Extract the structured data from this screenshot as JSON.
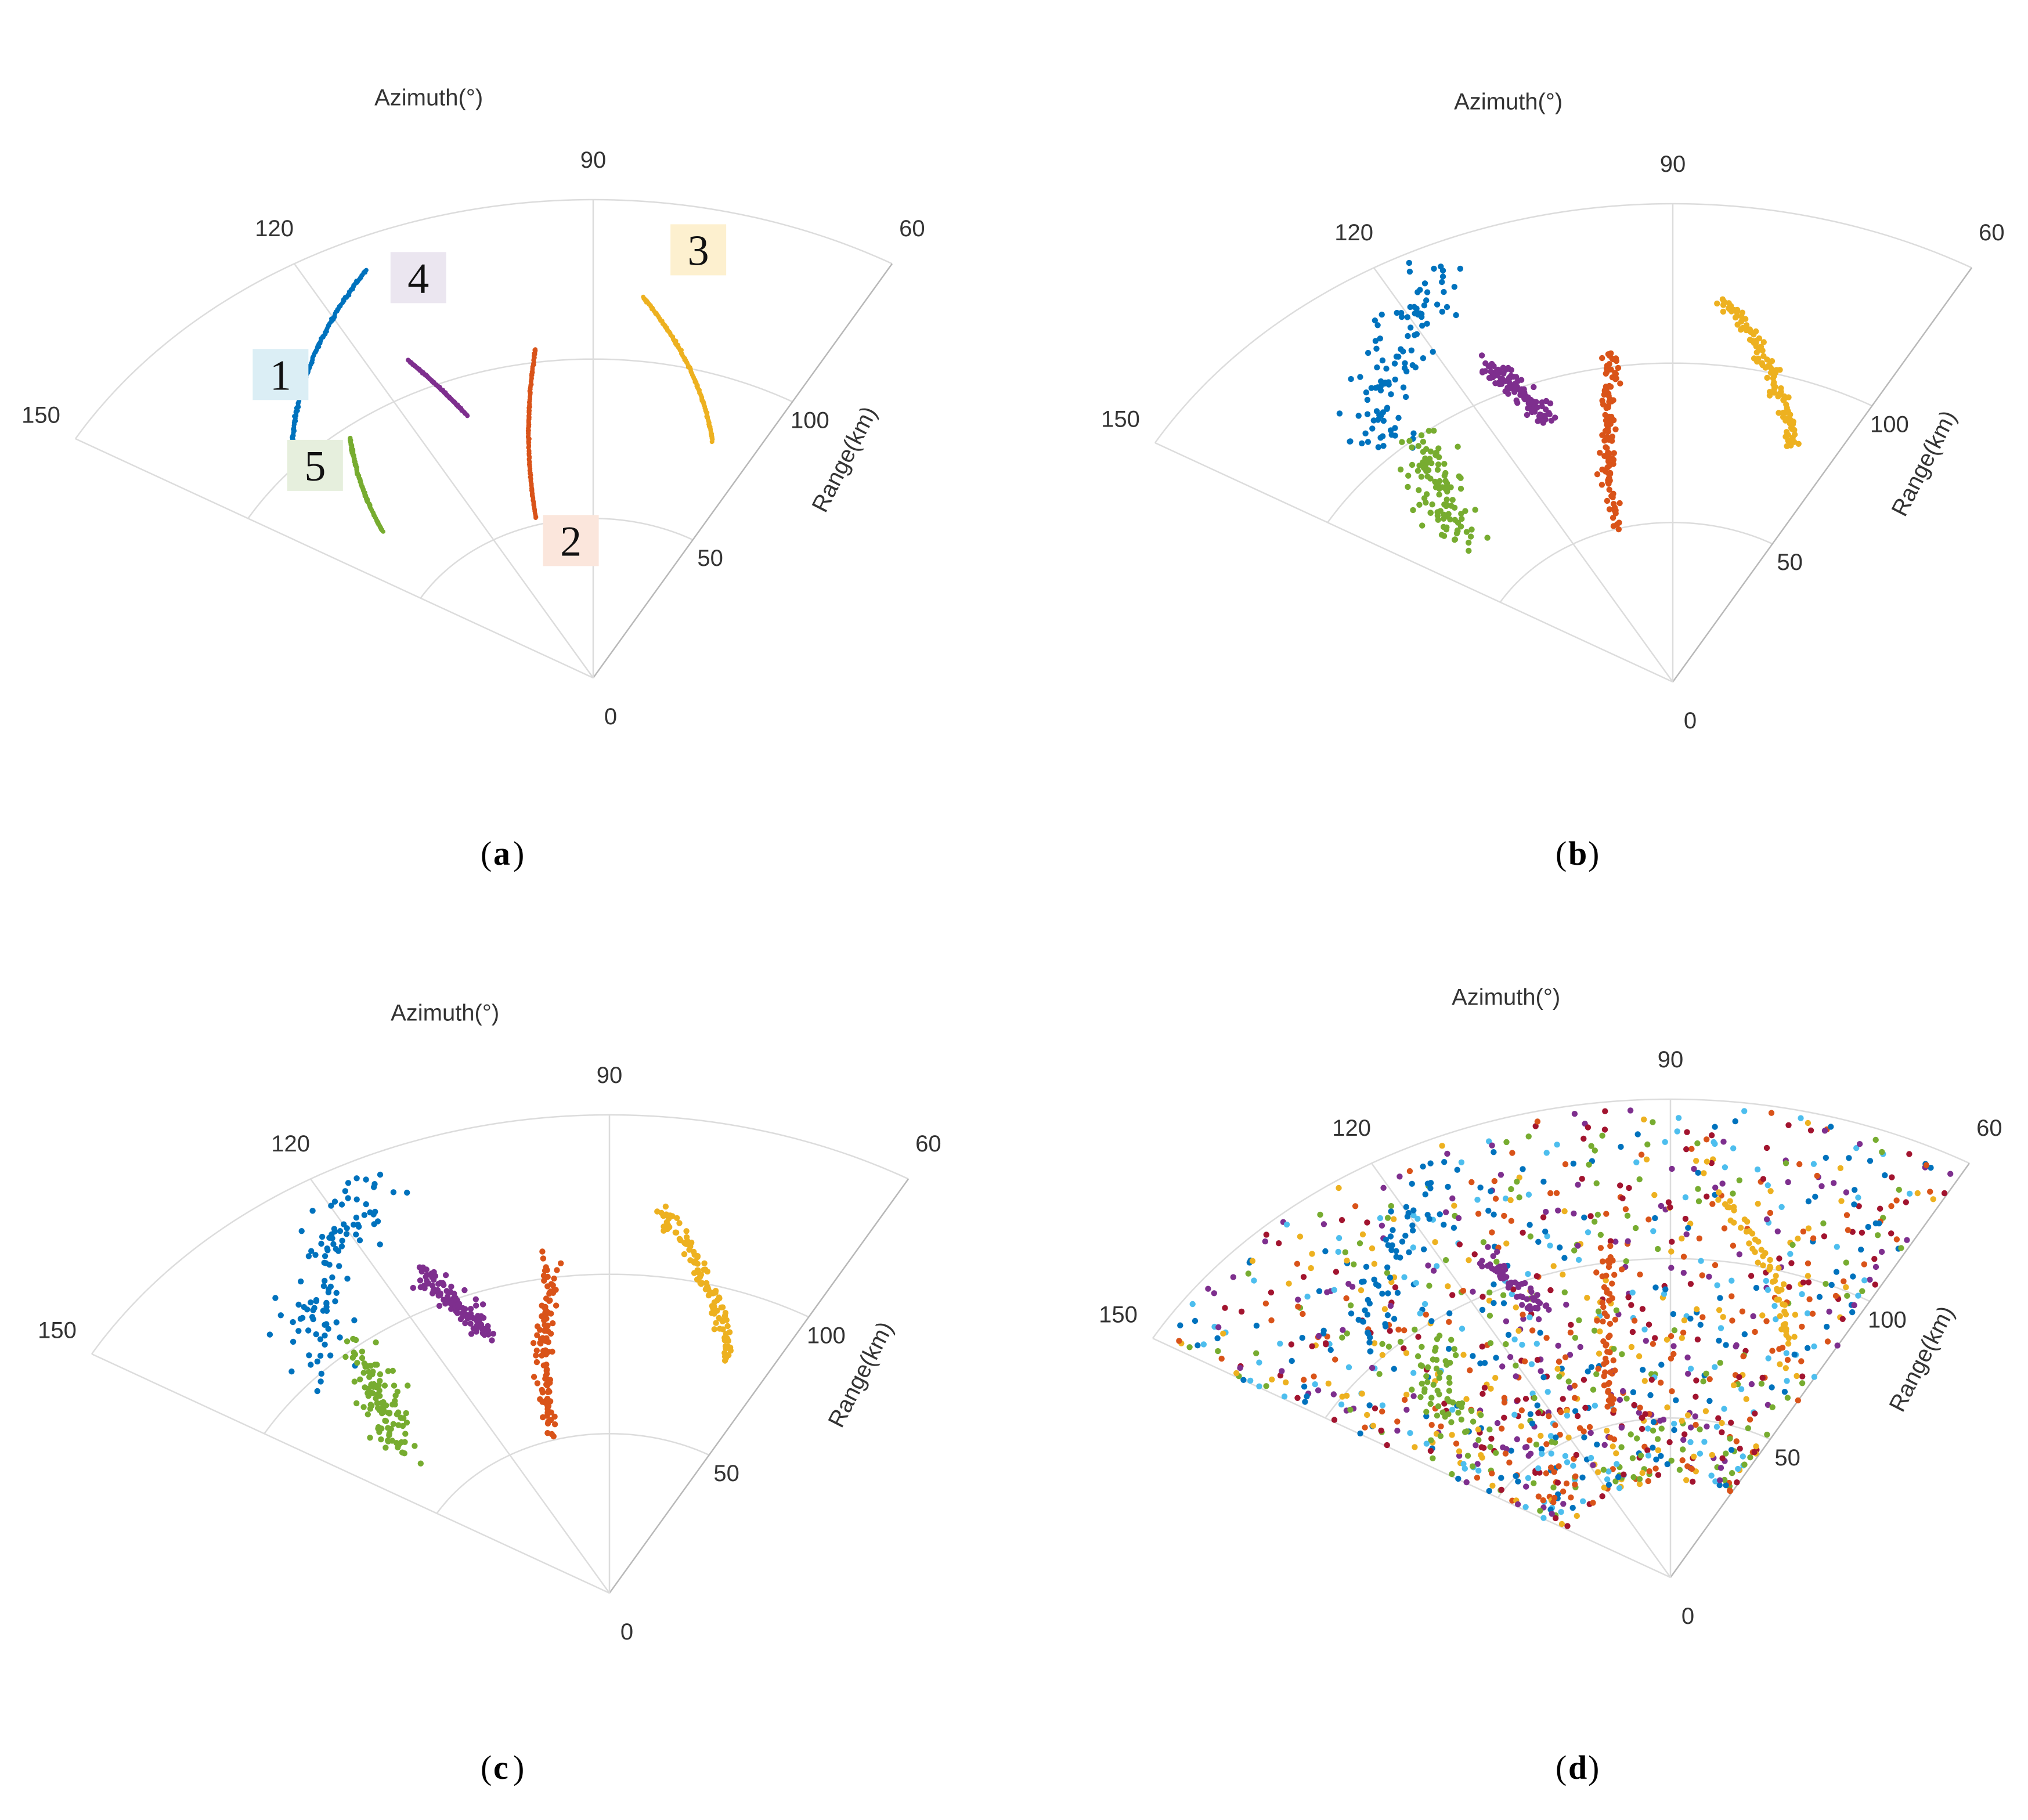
{
  "chart_data": [
    {
      "id": "a",
      "type": "scatter",
      "coordinate_system": "polar-sector",
      "caption_letter": "a",
      "theta_title": "Azimuth(°)",
      "r_title": "Range(km)",
      "theta_range_deg": [
        60,
        150
      ],
      "r_range_km": [
        0,
        150
      ],
      "theta_ticks": [
        "60",
        "90",
        "120",
        "150"
      ],
      "r_ticks": [
        "0",
        "50",
        "100"
      ],
      "points_per_series": 200,
      "noise": "none",
      "series": [
        {
          "name": "1",
          "color": "#0072BD",
          "label_bg": "#dbeef5",
          "track": {
            "r_start": 105,
            "theta_start": 136,
            "r_end": 140,
            "theta_end": 114
          },
          "spread_r": 0.15,
          "spread_theta": 0.04
        },
        {
          "name": "2",
          "color": "#D95319",
          "label_bg": "#fbe6dc",
          "track": {
            "r_start": 52,
            "theta_start": 106,
            "r_end": 104,
            "theta_end": 98
          },
          "spread_r": 0.15,
          "spread_theta": 0.04
        },
        {
          "name": "3",
          "color": "#EDB120",
          "label_bg": "#fdf0cf",
          "track": {
            "r_start": 120,
            "theta_start": 84,
            "r_end": 80,
            "theta_end": 68
          },
          "spread_r": 0.15,
          "spread_theta": 0.04
        },
        {
          "name": "4",
          "color": "#7E2F8E",
          "label_bg": "#ebe6f0",
          "track": {
            "r_start": 110,
            "theta_start": 115,
            "r_end": 88,
            "theta_end": 111
          },
          "spread_r": 0.15,
          "spread_theta": 0.04
        },
        {
          "name": "5",
          "color": "#77AC30",
          "label_bg": "#e6efdd",
          "track": {
            "r_start": 97,
            "theta_start": 129,
            "r_end": 70,
            "theta_end": 139
          },
          "spread_r": 0.15,
          "spread_theta": 0.04
        }
      ]
    },
    {
      "id": "b",
      "type": "scatter",
      "coordinate_system": "polar-sector",
      "caption_letter": "b",
      "theta_title": "Azimuth(°)",
      "r_title": "Range(km)",
      "theta_range_deg": [
        60,
        150
      ],
      "r_range_km": [
        0,
        150
      ],
      "theta_ticks": [
        "60",
        "90",
        "120",
        "150"
      ],
      "r_ticks": [
        "0",
        "50",
        "100"
      ],
      "points_per_series": 110,
      "noise": "none",
      "series": [
        {
          "name": "1",
          "color": "#0072BD",
          "track": {
            "r_start": 104,
            "theta_start": 136,
            "r_end": 141,
            "theta_end": 114
          },
          "spread_r": 4.5,
          "spread_theta": 1.6
        },
        {
          "name": "2",
          "color": "#D95319",
          "track": {
            "r_start": 53,
            "theta_start": 106,
            "r_end": 104,
            "theta_end": 98
          },
          "spread_r": 2.0,
          "spread_theta": 0.7
        },
        {
          "name": "3",
          "color": "#EDB120",
          "track": {
            "r_start": 121,
            "theta_start": 84,
            "r_end": 80,
            "theta_end": 68
          },
          "spread_r": 1.2,
          "spread_theta": 0.5
        },
        {
          "name": "4",
          "color": "#7E2F8E",
          "track": {
            "r_start": 110,
            "theta_start": 115,
            "r_end": 88,
            "theta_end": 111
          },
          "spread_r": 2.0,
          "spread_theta": 0.9
        },
        {
          "name": "5",
          "color": "#77AC30",
          "track": {
            "r_start": 97,
            "theta_start": 129,
            "r_end": 70,
            "theta_end": 139
          },
          "spread_r": 3.5,
          "spread_theta": 1.8
        }
      ]
    },
    {
      "id": "c",
      "type": "scatter",
      "coordinate_system": "polar-sector",
      "caption_letter": "c",
      "theta_title": "Azimuth(°)",
      "r_title": "Range(km)",
      "theta_range_deg": [
        60,
        150
      ],
      "r_range_km": [
        0,
        150
      ],
      "theta_ticks": [
        "60",
        "90",
        "120",
        "150"
      ],
      "r_ticks": [
        "0",
        "50",
        "100"
      ],
      "points_per_series": 110,
      "noise": "none",
      "series": [
        {
          "name": "1",
          "color": "#0072BD",
          "track": {
            "r_start": 104,
            "theta_start": 136,
            "r_end": 141,
            "theta_end": 114
          },
          "spread_r": 4.5,
          "spread_theta": 1.6
        },
        {
          "name": "2",
          "color": "#D95319",
          "track": {
            "r_start": 53,
            "theta_start": 106,
            "r_end": 104,
            "theta_end": 98
          },
          "spread_r": 2.0,
          "spread_theta": 0.7
        },
        {
          "name": "3",
          "color": "#EDB120",
          "track": {
            "r_start": 121,
            "theta_start": 84,
            "r_end": 80,
            "theta_end": 68
          },
          "spread_r": 1.2,
          "spread_theta": 0.5
        },
        {
          "name": "4",
          "color": "#7E2F8E",
          "track": {
            "r_start": 110,
            "theta_start": 115,
            "r_end": 88,
            "theta_end": 111
          },
          "spread_r": 2.0,
          "spread_theta": 0.9
        },
        {
          "name": "5",
          "color": "#77AC30",
          "track": {
            "r_start": 97,
            "theta_start": 129,
            "r_end": 70,
            "theta_end": 139
          },
          "spread_r": 3.5,
          "spread_theta": 1.8
        }
      ]
    },
    {
      "id": "d",
      "type": "scatter",
      "coordinate_system": "polar-sector",
      "caption_letter": "d",
      "theta_title": "Azimuth(°)",
      "r_title": "Range(km)",
      "theta_range_deg": [
        60,
        150
      ],
      "r_range_km": [
        0,
        150
      ],
      "theta_ticks": [
        "60",
        "90",
        "120",
        "150"
      ],
      "r_ticks": [
        "0",
        "50",
        "100"
      ],
      "points_per_series": 55,
      "noise": {
        "count": 1150,
        "colors": [
          "#0072BD",
          "#D95319",
          "#EDB120",
          "#7E2F8E",
          "#77AC30",
          "#4DBEEE",
          "#A2142F"
        ]
      },
      "series": [
        {
          "name": "1",
          "color": "#0072BD",
          "track": {
            "r_start": 104,
            "theta_start": 136,
            "r_end": 141,
            "theta_end": 114
          },
          "spread_r": 3.0,
          "spread_theta": 1.2
        },
        {
          "name": "2",
          "color": "#D95319",
          "track": {
            "r_start": 53,
            "theta_start": 106,
            "r_end": 104,
            "theta_end": 98
          },
          "spread_r": 2.0,
          "spread_theta": 0.7
        },
        {
          "name": "3",
          "color": "#EDB120",
          "track": {
            "r_start": 121,
            "theta_start": 84,
            "r_end": 80,
            "theta_end": 68
          },
          "spread_r": 1.2,
          "spread_theta": 0.5
        },
        {
          "name": "4",
          "color": "#7E2F8E",
          "track": {
            "r_start": 110,
            "theta_start": 115,
            "r_end": 88,
            "theta_end": 111
          },
          "spread_r": 2.0,
          "spread_theta": 0.9
        },
        {
          "name": "5",
          "color": "#77AC30",
          "track": {
            "r_start": 97,
            "theta_start": 129,
            "r_end": 70,
            "theta_end": 139
          },
          "spread_r": 3.5,
          "spread_theta": 1.8
        }
      ]
    }
  ]
}
